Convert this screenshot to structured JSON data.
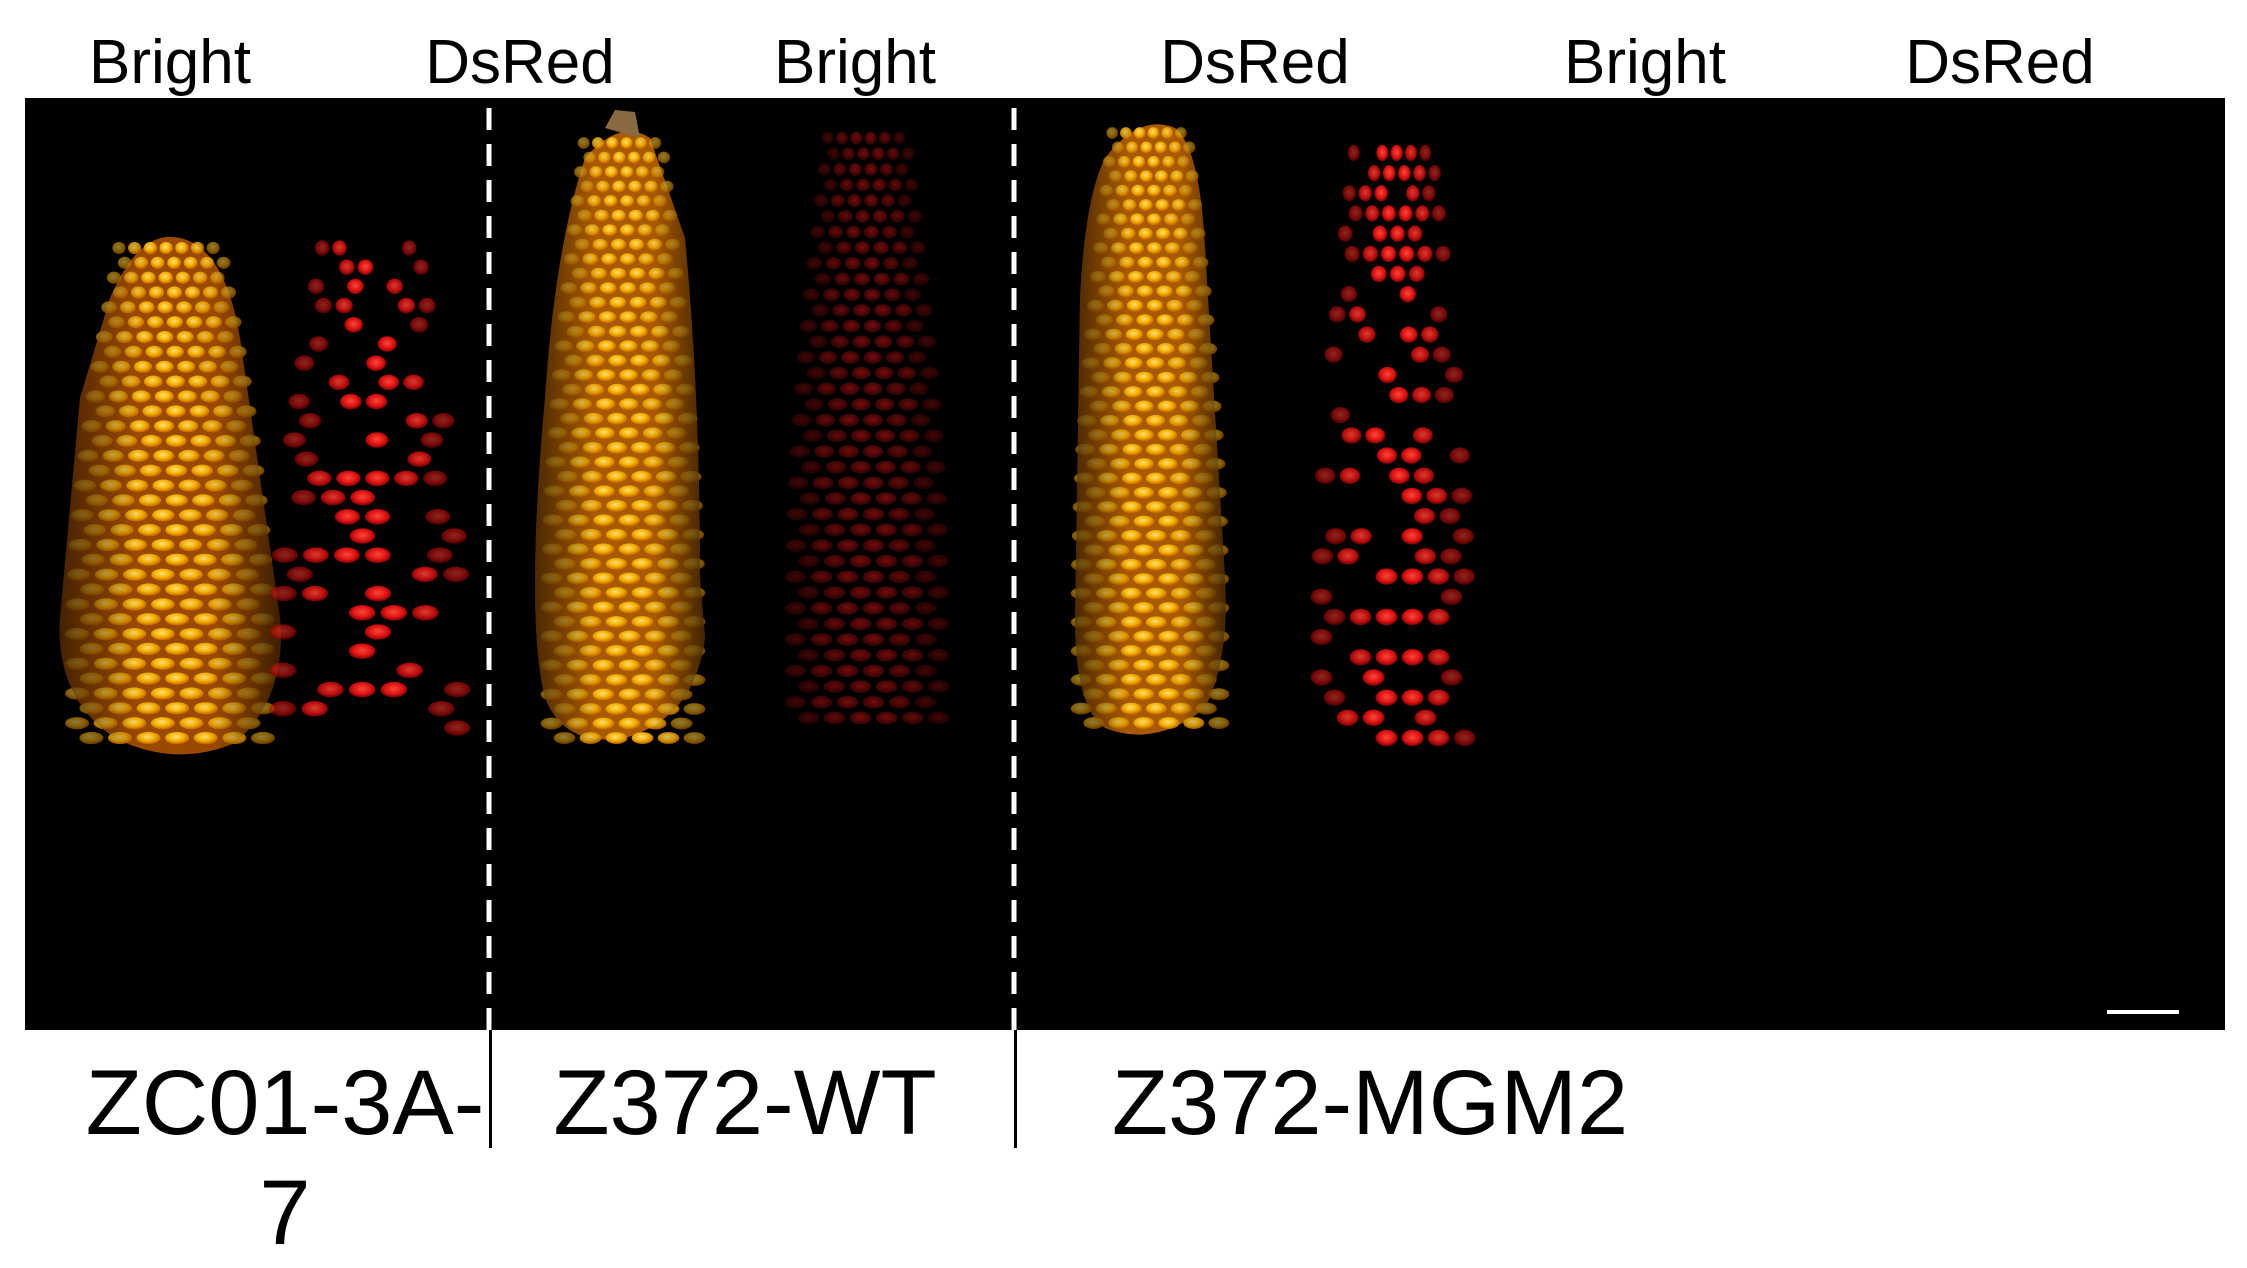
{
  "headers": [
    "Bright",
    "DsRed",
    "Bright",
    "DsRed",
    "Bright",
    "DsRed"
  ],
  "samples": [
    {
      "label": "ZC01-3A-7",
      "fluorescence": "bright"
    },
    {
      "label": "Z372-WT",
      "fluorescence": "dim"
    },
    {
      "label": "Z372-MGM2",
      "fluorescence": "bright"
    }
  ],
  "colors": {
    "background": "#000000",
    "kernel_bright": "#f5b400",
    "kernel_dark": "#c86400",
    "dsred_bright": "#ff1a1a",
    "dsred_dim": "#5a0606",
    "divider": "#ffffff"
  },
  "scale_bar": true
}
